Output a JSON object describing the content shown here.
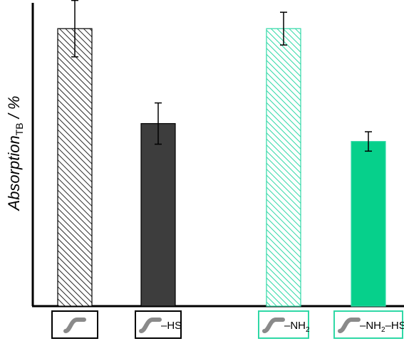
{
  "chart_data": {
    "type": "bar",
    "ylabel": "Absorption",
    "ylabel_subscript": "TB",
    "ylabel_unit": " / %",
    "y_ticks_shown": false,
    "ylim": [
      0,
      100
    ],
    "grid": false,
    "categories": [
      {
        "suffix": "",
        "subscript": "",
        "tail": "",
        "box_color": "#000000"
      },
      {
        "suffix": "–HS",
        "subscript": "",
        "tail": "",
        "box_color": "#000000"
      },
      {
        "suffix": "–NH",
        "subscript": "2",
        "tail": "",
        "box_color": "#2fd8a6"
      },
      {
        "suffix": "–NH",
        "subscript": "2",
        "tail": "–HS",
        "box_color": "#2fd8a6"
      }
    ],
    "values": [
      91.5,
      60.2,
      91.5,
      54.3
    ],
    "errors": [
      9.3,
      6.8,
      5.4,
      3.2
    ],
    "bar_styles": [
      "hatched",
      "solid",
      "hatched",
      "solid"
    ],
    "colors": {
      "black_series": "#3d3d3d",
      "black_stroke": "#000000",
      "green_series": "#06d08b",
      "green_stroke": "#2fd8a6",
      "icon": "#8a8a8a"
    }
  }
}
